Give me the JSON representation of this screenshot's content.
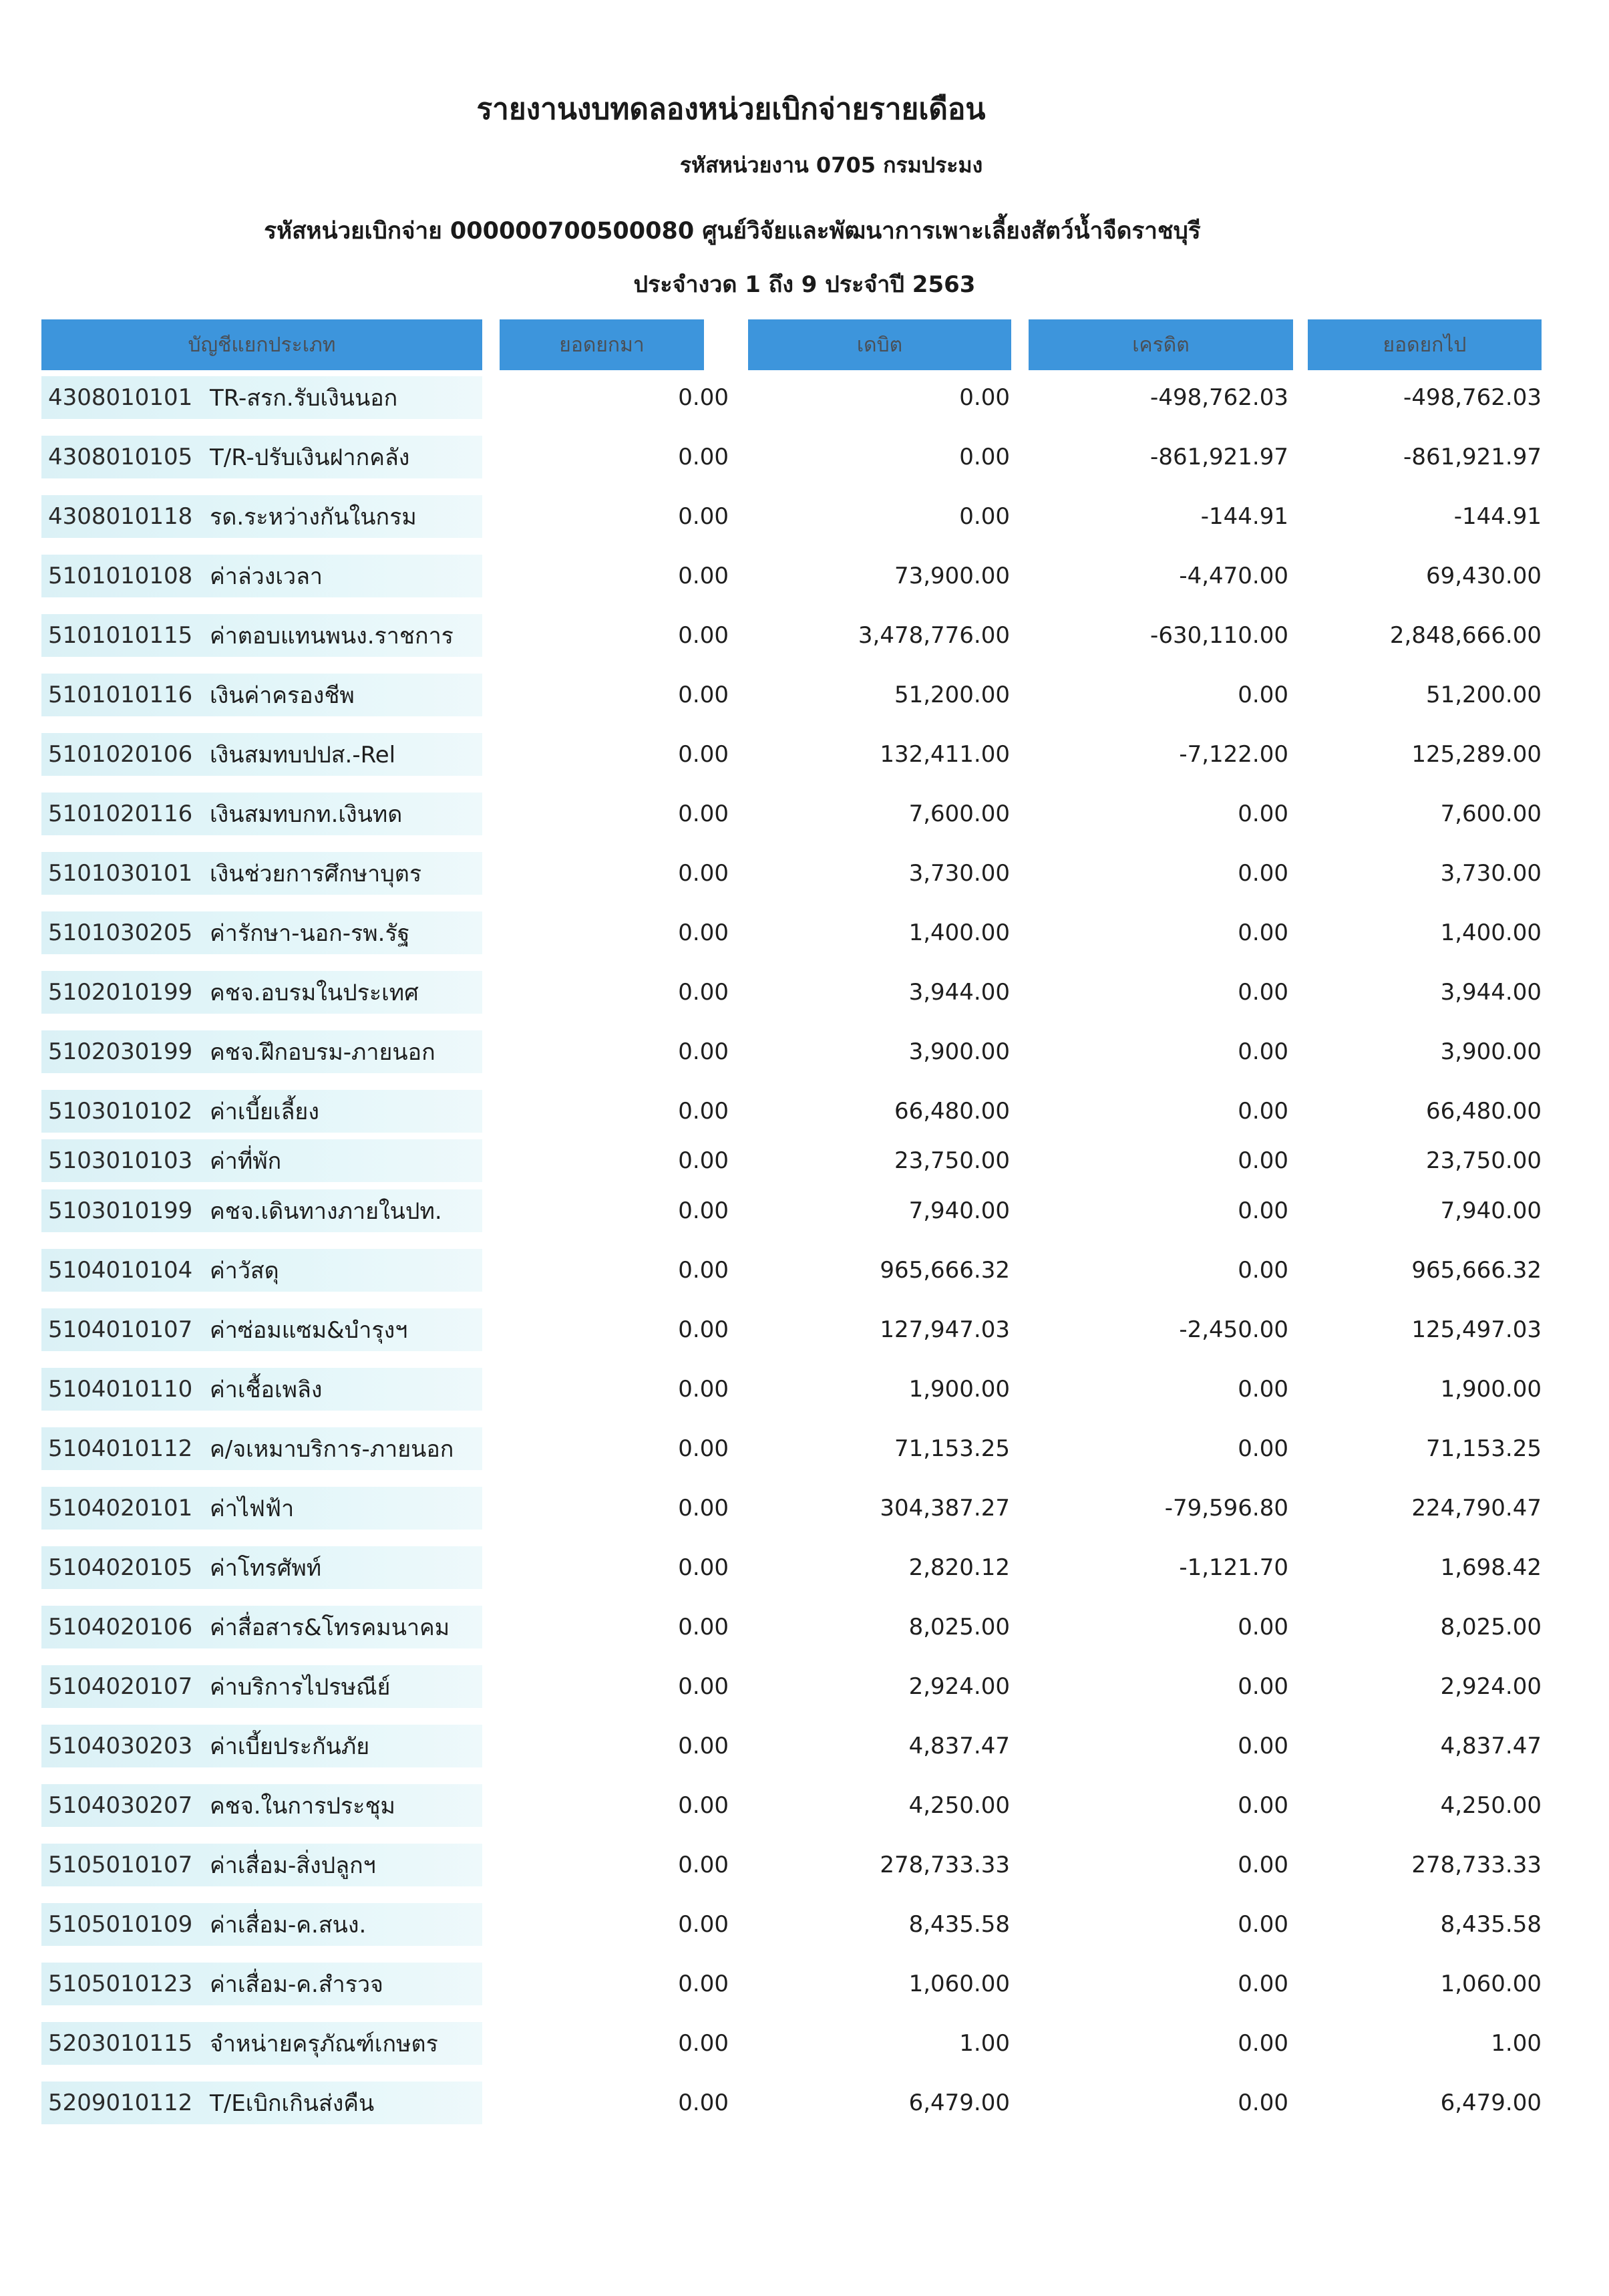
{
  "report": {
    "title": "รายงานงบทดลองหน่วยเบิกจ่ายรายเดือน",
    "department": "รหัสหน่วยงาน 0705 กรมประมง",
    "disbursement_unit": "รหัสหน่วยเบิกจ่าย 000000700500080 ศูนย์วิจัยและพัฒนาการเพาะเลี้ยงสัตว์น้ำจืดราชบุรี",
    "period": "ประจำงวด 1 ถึง 9 ประจำปี 2563"
  },
  "table": {
    "headers": [
      "บัญชีแยกประเภท",
      "ยอดยกมา",
      "เดบิต",
      "เครดิต",
      "ยอดยกไป"
    ],
    "rows": [
      {
        "code": "4308010101",
        "name": "TR-สรก.รับเงินนอก",
        "opening": "0.00",
        "debit": "0.00",
        "credit": "-498,762.03",
        "closing": "-498,762.03"
      },
      {
        "code": "4308010105",
        "name": "T/R-ปรับเงินฝากคลัง",
        "opening": "0.00",
        "debit": "0.00",
        "credit": "-861,921.97",
        "closing": "-861,921.97"
      },
      {
        "code": "4308010118",
        "name": "รด.ระหว่างกันในกรม",
        "opening": "0.00",
        "debit": "0.00",
        "credit": "-144.91",
        "closing": "-144.91"
      },
      {
        "code": "5101010108",
        "name": "ค่าล่วงเวลา",
        "opening": "0.00",
        "debit": "73,900.00",
        "credit": "-4,470.00",
        "closing": "69,430.00"
      },
      {
        "code": "5101010115",
        "name": "ค่าตอบแทนพนง.ราชการ",
        "opening": "0.00",
        "debit": "3,478,776.00",
        "credit": "-630,110.00",
        "closing": "2,848,666.00"
      },
      {
        "code": "5101010116",
        "name": "เงินค่าครองชีพ",
        "opening": "0.00",
        "debit": "51,200.00",
        "credit": "0.00",
        "closing": "51,200.00"
      },
      {
        "code": "5101020106",
        "name": "เงินสมทบปปส.-Rel",
        "opening": "0.00",
        "debit": "132,411.00",
        "credit": "-7,122.00",
        "closing": "125,289.00"
      },
      {
        "code": "5101020116",
        "name": "เงินสมทบกท.เงินทด",
        "opening": "0.00",
        "debit": "7,600.00",
        "credit": "0.00",
        "closing": "7,600.00"
      },
      {
        "code": "5101030101",
        "name": "เงินช่วยการศึกษาบุตร",
        "opening": "0.00",
        "debit": "3,730.00",
        "credit": "0.00",
        "closing": "3,730.00"
      },
      {
        "code": "5101030205",
        "name": "ค่ารักษา-นอก-รพ.รัฐ",
        "opening": "0.00",
        "debit": "1,400.00",
        "credit": "0.00",
        "closing": "1,400.00"
      },
      {
        "code": "5102010199",
        "name": "คชจ.อบรมในประเทศ",
        "opening": "0.00",
        "debit": "3,944.00",
        "credit": "0.00",
        "closing": "3,944.00"
      },
      {
        "code": "5102030199",
        "name": "คชจ.ฝึกอบรม-ภายนอก",
        "opening": "0.00",
        "debit": "3,900.00",
        "credit": "0.00",
        "closing": "3,900.00"
      },
      {
        "code": "5103010102",
        "name": "ค่าเบี้ยเลี้ยง",
        "opening": "0.00",
        "debit": "66,480.00",
        "credit": "0.00",
        "closing": "66,480.00"
      },
      {
        "code": "5103010103",
        "name": "ค่าที่พัก",
        "opening": "0.00",
        "debit": "23,750.00",
        "credit": "0.00",
        "closing": "23,750.00"
      },
      {
        "code": "5103010199",
        "name": "คชจ.เดินทางภายในปท.",
        "opening": "0.00",
        "debit": "7,940.00",
        "credit": "0.00",
        "closing": "7,940.00"
      },
      {
        "code": "5104010104",
        "name": "ค่าวัสดุ",
        "opening": "0.00",
        "debit": "965,666.32",
        "credit": "0.00",
        "closing": "965,666.32"
      },
      {
        "code": "5104010107",
        "name": "ค่าซ่อมแซม&บำรุงฯ",
        "opening": "0.00",
        "debit": "127,947.03",
        "credit": "-2,450.00",
        "closing": "125,497.03"
      },
      {
        "code": "5104010110",
        "name": "ค่าเชื้อเพลิง",
        "opening": "0.00",
        "debit": "1,900.00",
        "credit": "0.00",
        "closing": "1,900.00"
      },
      {
        "code": "5104010112",
        "name": "ค/จเหมาบริการ-ภายนอก",
        "opening": "0.00",
        "debit": "71,153.25",
        "credit": "0.00",
        "closing": "71,153.25"
      },
      {
        "code": "5104020101",
        "name": "ค่าไฟฟ้า",
        "opening": "0.00",
        "debit": "304,387.27",
        "credit": "-79,596.80",
        "closing": "224,790.47"
      },
      {
        "code": "5104020105",
        "name": "ค่าโทรศัพท์",
        "opening": "0.00",
        "debit": "2,820.12",
        "credit": "-1,121.70",
        "closing": "1,698.42"
      },
      {
        "code": "5104020106",
        "name": "ค่าสื่อสาร&โทรคมนาคม",
        "opening": "0.00",
        "debit": "8,025.00",
        "credit": "0.00",
        "closing": "8,025.00"
      },
      {
        "code": "5104020107",
        "name": "ค่าบริการไปรษณีย์",
        "opening": "0.00",
        "debit": "2,924.00",
        "credit": "0.00",
        "closing": "2,924.00"
      },
      {
        "code": "5104030203",
        "name": "ค่าเบี้ยประกันภัย",
        "opening": "0.00",
        "debit": "4,837.47",
        "credit": "0.00",
        "closing": "4,837.47"
      },
      {
        "code": "5104030207",
        "name": "คชจ.ในการประชุม",
        "opening": "0.00",
        "debit": "4,250.00",
        "credit": "0.00",
        "closing": "4,250.00"
      },
      {
        "code": "5105010107",
        "name": "ค่าเสื่อม-สิ่งปลูกฯ",
        "opening": "0.00",
        "debit": "278,733.33",
        "credit": "0.00",
        "closing": "278,733.33"
      },
      {
        "code": "5105010109",
        "name": "ค่าเสื่อม-ค.สนง.",
        "opening": "0.00",
        "debit": "8,435.58",
        "credit": "0.00",
        "closing": "8,435.58"
      },
      {
        "code": "5105010123",
        "name": "ค่าเสื่อม-ค.สำรวจ",
        "opening": "0.00",
        "debit": "1,060.00",
        "credit": "0.00",
        "closing": "1,060.00"
      },
      {
        "code": "5203010115",
        "name": "จำหน่ายครุภัณฑ์เกษตร",
        "opening": "0.00",
        "debit": "1.00",
        "credit": "0.00",
        "closing": "1.00"
      },
      {
        "code": "5209010112",
        "name": "T/Eเบิกเกินส่งคืน",
        "opening": "0.00",
        "debit": "6,479.00",
        "credit": "0.00",
        "closing": "6,479.00"
      }
    ]
  }
}
